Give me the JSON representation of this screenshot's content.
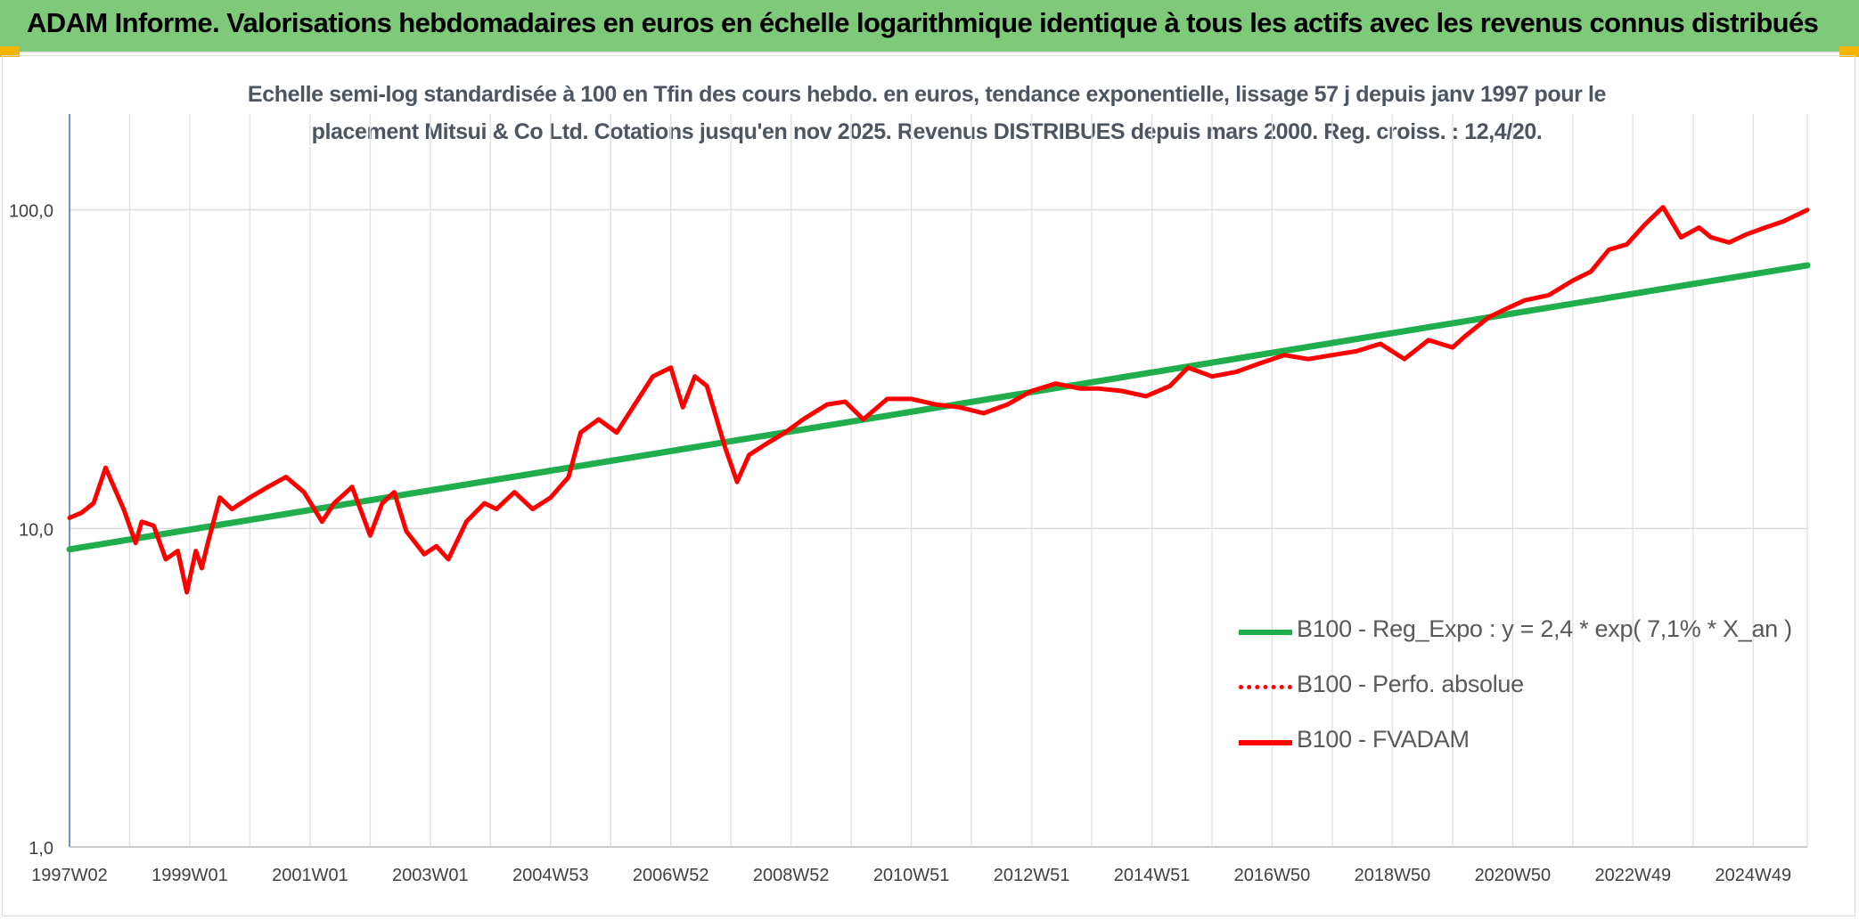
{
  "header": {
    "title": "ADAM Informe. Valorisations hebdomadaires en euros en échelle logarithmique identique à tous les actifs avec les revenus connus distribués"
  },
  "chart_data": {
    "type": "line",
    "title": "Echelle semi-log standardisée à 100 en Tfin des cours hebdo. en euros, tendance exponentielle, lissage 57 j depuis janv 1997 pour le",
    "subtitle": "placement Mitsui & Co Ltd. Cotations jusqu'en nov 2025. Revenus DISTRIBUES depuis mars 2000. Reg. croiss. : 12,4/20.",
    "xlabel": "",
    "ylabel": "",
    "y_scale": "log",
    "ylim": [
      1,
      200
    ],
    "xlim": [
      1997.0,
      2025.9
    ],
    "y_ticks": [
      1,
      10,
      100
    ],
    "y_tick_labels": [
      "1,0",
      "10,0",
      "100,0"
    ],
    "x_ticks": [
      1997.0,
      1999.0,
      2001.0,
      2003.0,
      2005.0,
      2007.0,
      2009.0,
      2011.0,
      2013.0,
      2015.0,
      2017.0,
      2019.0,
      2021.0,
      2023.0,
      2025.0
    ],
    "x_tick_labels": [
      "1997W02",
      "1999W01",
      "2001W01",
      "2003W01",
      "2004W53",
      "2006W52",
      "2008W52",
      "2010W51",
      "2012W51",
      "2014W51",
      "2016W50",
      "2018W50",
      "2020W50",
      "2022W49",
      "2024W49"
    ],
    "grid": true,
    "legend_position": "bottom-right",
    "series": [
      {
        "name": "B100 - Reg_Expo : y = 2,4 * exp( 7,1% *  X_an )",
        "color": "#1fae4b",
        "style": "solid",
        "x": [
          1997.0,
          2025.9
        ],
        "values": [
          8.6,
          67
        ]
      },
      {
        "name": "B100 - Perfo. absolue",
        "color": "#ff0000",
        "style": "dotted",
        "x": [],
        "values": []
      },
      {
        "name": "B100 - FVADAM",
        "color": "#ff0000",
        "style": "solid",
        "x": [
          1997.0,
          1997.2,
          1997.4,
          1997.6,
          1997.9,
          1998.1,
          1998.2,
          1998.4,
          1998.6,
          1998.8,
          1998.95,
          1999.1,
          1999.2,
          1999.3,
          1999.5,
          1999.7,
          2000.0,
          2000.3,
          2000.6,
          2000.9,
          2001.2,
          2001.4,
          2001.7,
          2002.0,
          2002.2,
          2002.4,
          2002.6,
          2002.9,
          2003.1,
          2003.3,
          2003.6,
          2003.9,
          2004.1,
          2004.4,
          2004.7,
          2005.0,
          2005.3,
          2005.5,
          2005.8,
          2006.1,
          2006.4,
          2006.7,
          2007.0,
          2007.2,
          2007.4,
          2007.6,
          2007.9,
          2008.1,
          2008.3,
          2008.6,
          2008.9,
          2009.2,
          2009.6,
          2009.9,
          2010.2,
          2010.6,
          2011.0,
          2011.4,
          2011.8,
          2012.2,
          2012.6,
          2013.0,
          2013.4,
          2013.8,
          2014.1,
          2014.5,
          2014.9,
          2015.3,
          2015.6,
          2016.0,
          2016.4,
          2016.8,
          2017.2,
          2017.6,
          2018.0,
          2018.4,
          2018.8,
          2019.2,
          2019.6,
          2020.0,
          2020.2,
          2020.6,
          2020.9,
          2021.2,
          2021.6,
          2022.0,
          2022.3,
          2022.6,
          2022.9,
          2023.2,
          2023.5,
          2023.8,
          2024.1,
          2024.3,
          2024.6,
          2024.9,
          2025.2,
          2025.5,
          2025.9
        ],
        "values": [
          10.8,
          11.2,
          12.0,
          15.5,
          11.5,
          9.0,
          10.5,
          10.2,
          8.0,
          8.5,
          6.3,
          8.5,
          7.5,
          9.0,
          12.5,
          11.5,
          12.5,
          13.5,
          14.5,
          13.0,
          10.5,
          12.0,
          13.5,
          9.5,
          12.0,
          13.0,
          9.8,
          8.3,
          8.8,
          8.0,
          10.5,
          12.0,
          11.5,
          13.0,
          11.5,
          12.5,
          14.5,
          20.0,
          22.0,
          20.0,
          24.5,
          30.0,
          32.0,
          24.0,
          30.0,
          28.0,
          18.0,
          14.0,
          17.0,
          18.5,
          20.0,
          22.0,
          24.5,
          25.0,
          22.0,
          25.5,
          25.5,
          24.5,
          24.0,
          23.0,
          24.5,
          27.0,
          28.5,
          27.5,
          27.5,
          27.0,
          26.0,
          28.0,
          32.0,
          30.0,
          31.0,
          33.0,
          35.0,
          34.0,
          35.0,
          36.0,
          38.0,
          34.0,
          39.0,
          37.0,
          40.0,
          46.0,
          49.0,
          52.0,
          54.0,
          60.0,
          64.0,
          75.0,
          78.0,
          90.0,
          102.0,
          82.0,
          88.0,
          82.0,
          79.0,
          84.0,
          88.0,
          92.0,
          100.0
        ]
      }
    ]
  }
}
